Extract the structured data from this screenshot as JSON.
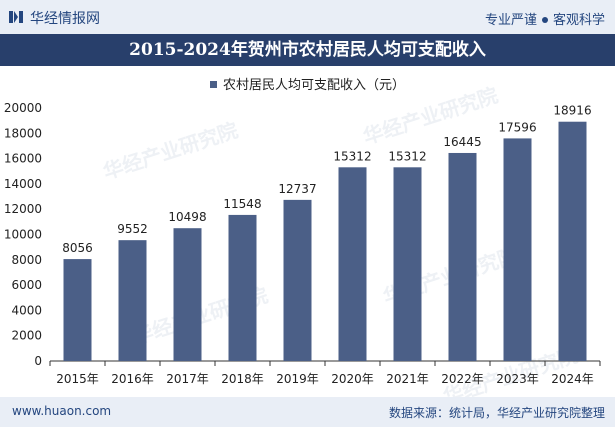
{
  "header": {
    "brand": "华经情报网",
    "tagline_left": "专业严谨",
    "tagline_right": "客观科学"
  },
  "watermark": "华经产业研究院",
  "chart_data": {
    "type": "bar",
    "title": "2015-2024年贺州市农村居民人均可支配收入",
    "legend": [
      "农村居民人均可支配收入（元）"
    ],
    "categories": [
      "2015年",
      "2016年",
      "2017年",
      "2018年",
      "2019年",
      "2020年",
      "2021年",
      "2022年",
      "2023年",
      "2024年"
    ],
    "series": [
      {
        "name": "农村居民人均可支配收入（元）",
        "values": [
          8056,
          9552,
          10498,
          11548,
          12737,
          15312,
          15312,
          16445,
          17596,
          18916
        ]
      }
    ],
    "ylim": [
      0,
      20000
    ],
    "yticks": [
      0,
      2000,
      4000,
      6000,
      8000,
      10000,
      12000,
      14000,
      16000,
      18000,
      20000
    ],
    "xlabel": "",
    "ylabel": "",
    "grid": false,
    "bar_color": "#4b5f87"
  },
  "footer": {
    "url": "www.huaon.com",
    "source": "数据来源：统计局，华经产业研究院整理"
  }
}
